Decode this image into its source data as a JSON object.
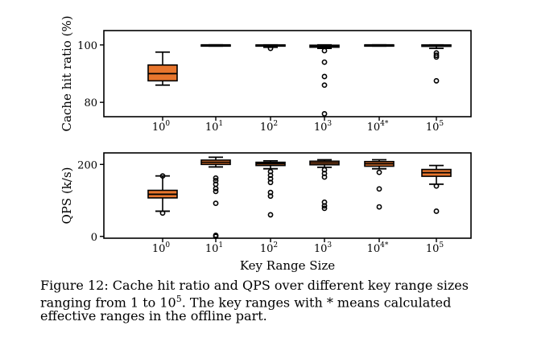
{
  "chart_data": [
    {
      "type": "box",
      "ylabel": "Cache hit ratio (%)",
      "xlabel": "",
      "ylim": [
        75,
        105
      ],
      "yticks": [
        80,
        100
      ],
      "box_color": "#e8762d",
      "categories": [
        {
          "base": "10",
          "exp": "0"
        },
        {
          "base": "10",
          "exp": "1"
        },
        {
          "base": "10",
          "exp": "2"
        },
        {
          "base": "10",
          "exp": "3"
        },
        {
          "base": "10",
          "exp": "4*"
        },
        {
          "base": "10",
          "exp": "5"
        }
      ],
      "boxes": [
        {
          "whislo": 86,
          "q1": 87.5,
          "med": 90,
          "q3": 93,
          "whishi": 97.5,
          "fliers": []
        },
        {
          "whislo": 99.6,
          "q1": 99.8,
          "med": 100,
          "q3": 100,
          "whishi": 100,
          "fliers": []
        },
        {
          "whislo": 99.2,
          "q1": 99.7,
          "med": 99.9,
          "q3": 100,
          "whishi": 100,
          "fliers": [
            98.8
          ]
        },
        {
          "whislo": 98.8,
          "q1": 99.2,
          "med": 99.6,
          "q3": 99.9,
          "whishi": 100,
          "fliers": [
            98,
            94,
            89,
            86,
            76
          ]
        },
        {
          "whislo": 99.6,
          "q1": 99.8,
          "med": 100,
          "q3": 100,
          "whishi": 100,
          "fliers": []
        },
        {
          "whislo": 98.8,
          "q1": 99.5,
          "med": 99.8,
          "q3": 100,
          "whishi": 100,
          "fliers": [
            97.2,
            96.4,
            95.8,
            87.5
          ]
        }
      ]
    },
    {
      "type": "box",
      "ylabel": "QPS (k/s)",
      "xlabel": "Key Range Size",
      "ylim": [
        -5,
        232
      ],
      "yticks": [
        0,
        200
      ],
      "box_color": "#e8762d",
      "categories": [
        {
          "base": "10",
          "exp": "0"
        },
        {
          "base": "10",
          "exp": "1"
        },
        {
          "base": "10",
          "exp": "2"
        },
        {
          "base": "10",
          "exp": "3"
        },
        {
          "base": "10",
          "exp": "4*"
        },
        {
          "base": "10",
          "exp": "5"
        }
      ],
      "boxes": [
        {
          "whislo": 70,
          "q1": 107,
          "med": 117,
          "q3": 128,
          "whishi": 168,
          "fliers": [
            65,
            168
          ]
        },
        {
          "whislo": 193,
          "q1": 200,
          "med": 206,
          "q3": 212,
          "whishi": 220,
          "fliers": [
            162,
            155,
            145,
            133,
            125,
            92,
            3,
            0
          ]
        },
        {
          "whislo": 188,
          "q1": 197,
          "med": 202,
          "q3": 206,
          "whishi": 210,
          "fliers": [
            180,
            170,
            160,
            150,
            122,
            112,
            60
          ]
        },
        {
          "whislo": 192,
          "q1": 199,
          "med": 204,
          "q3": 209,
          "whishi": 213,
          "fliers": [
            185,
            175,
            165,
            95,
            85,
            78
          ]
        },
        {
          "whislo": 188,
          "q1": 195,
          "med": 202,
          "q3": 208,
          "whishi": 213,
          "fliers": [
            178,
            132,
            82
          ]
        },
        {
          "whislo": 145,
          "q1": 167,
          "med": 177,
          "q3": 186,
          "whishi": 197,
          "fliers": [
            140,
            70
          ]
        }
      ]
    }
  ],
  "caption": {
    "line1_pre": "Figure 12: Cache hit ratio and QPS over different key range sizes",
    "line2_pre": "ranging from 1 to 10",
    "line2_sup": "5",
    "line2_post": ".  The key ranges with * means calculated",
    "line3": "effective ranges in the offline part."
  }
}
